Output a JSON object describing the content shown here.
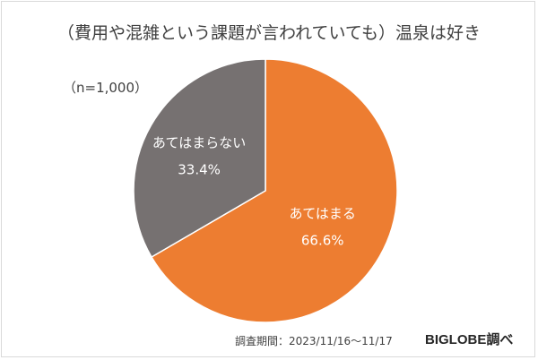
{
  "chart_data": {
    "type": "pie",
    "title": "（費用や混雑という課題が言われていても）温泉は好き",
    "sample_size": "（n=1,000）",
    "slices": [
      {
        "label": "あてはまる",
        "value": 66.6,
        "value_label": "66.6%",
        "color": "#ed7d31"
      },
      {
        "label": "あてはまらない",
        "value": 33.4,
        "value_label": "33.4%",
        "color": "#767171"
      }
    ]
  },
  "footer": {
    "survey_period": "調査期間：2023/11/16～11/17",
    "source": "BIGLOBE調べ"
  }
}
